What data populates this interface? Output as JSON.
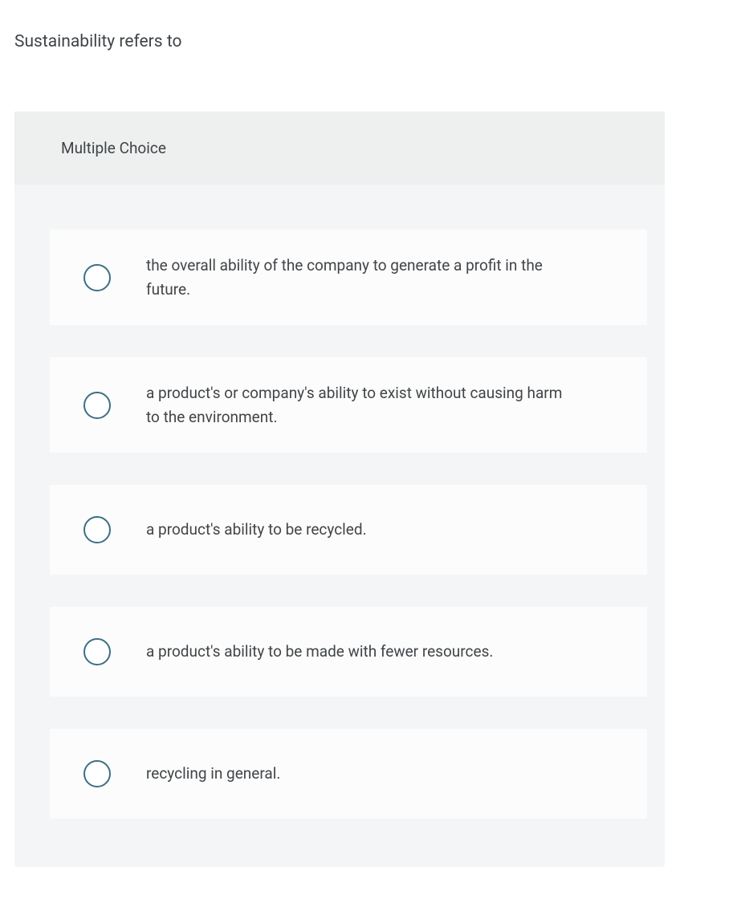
{
  "question": {
    "prompt": "Sustainability refers to",
    "type_label": "Multiple Choice",
    "options": [
      {
        "text": "the overall ability of the company to generate a profit in the future."
      },
      {
        "text": "a product's or company's ability to exist without causing harm to the environment."
      },
      {
        "text": "a product's ability to be recycled."
      },
      {
        "text": "a product's ability to be made with fewer resources."
      },
      {
        "text": "recycling in general."
      }
    ]
  },
  "colors": {
    "radio_border": "#3b6f84",
    "card_bg": "#f4f5f6",
    "card_header_bg": "#eeefef",
    "option_bg": "#fcfcfc",
    "text": "#3f4447"
  }
}
